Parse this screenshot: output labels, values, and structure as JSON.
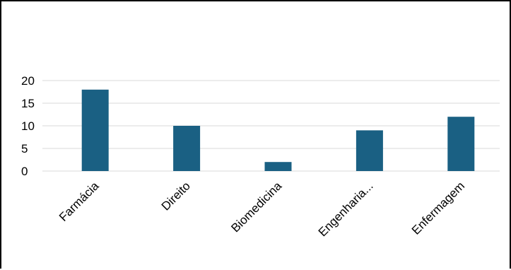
{
  "chart_data": {
    "type": "bar",
    "title": "",
    "xlabel": "",
    "ylabel": "",
    "categories": [
      "Farmácia",
      "Direito",
      "Biomedicina",
      "Engenharia...",
      "Enfermagem"
    ],
    "values": [
      18,
      10,
      2,
      9,
      12
    ],
    "ylim": [
      0,
      20
    ],
    "yticks": [
      0,
      5,
      10,
      15,
      20
    ],
    "grid": true,
    "legend": "none",
    "bar_color": "#1a6083",
    "grid_color": "#d9d9d9"
  }
}
